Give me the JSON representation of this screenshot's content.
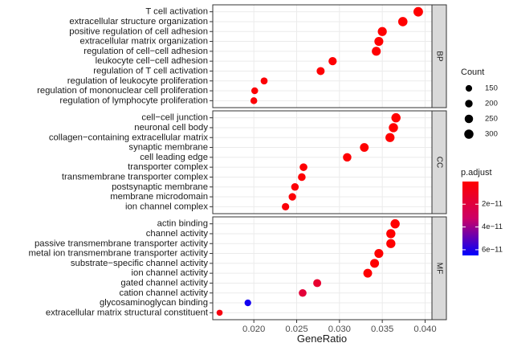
{
  "chart_data": {
    "type": "scatter",
    "xlabel": "GeneRatio",
    "ylabel": "",
    "xlim": [
      0.0152,
      0.0408
    ],
    "xticks": [
      0.02,
      0.025,
      0.03,
      0.035,
      0.04
    ],
    "xtick_labels": [
      "0.020",
      "0.025",
      "0.030",
      "0.035",
      "0.040"
    ],
    "grid": true,
    "legend_position": "right",
    "size_legend": {
      "title": "Count",
      "values": [
        150,
        200,
        250,
        300
      ],
      "labels": [
        "150",
        "200",
        "250",
        "300"
      ]
    },
    "color_legend": {
      "title": "p.adjust",
      "ticks": [
        2e-11,
        4e-11,
        6e-11
      ],
      "tick_labels": [
        "2e−11",
        "4e−11",
        "6e−11"
      ],
      "range": [
        1e-13,
        6.5e-11
      ],
      "low_color": "#ff0000",
      "high_color": "#0000ff"
    },
    "facets": [
      {
        "label": "BP",
        "terms": [
          {
            "term": "T cell activation",
            "x": 0.0392,
            "count": 320,
            "padj": 1e-13
          },
          {
            "term": "extracellular structure organization",
            "x": 0.0374,
            "count": 305,
            "padj": 1e-13
          },
          {
            "term": "positive regulation of cell adhesion",
            "x": 0.035,
            "count": 286,
            "padj": 5e-13
          },
          {
            "term": "extracellular matrix organization",
            "x": 0.0346,
            "count": 282,
            "padj": 1e-13
          },
          {
            "term": "regulation of cell−cell adhesion",
            "x": 0.0343,
            "count": 280,
            "padj": 1e-12
          },
          {
            "term": "leukocyte cell−cell adhesion",
            "x": 0.0292,
            "count": 238,
            "padj": 1e-12
          },
          {
            "term": "regulation of T cell activation",
            "x": 0.0278,
            "count": 227,
            "padj": 1e-12
          },
          {
            "term": "regulation of leukocyte proliferation",
            "x": 0.0212,
            "count": 172,
            "padj": 2e-12
          },
          {
            "term": "regulation of mononuclear cell proliferation",
            "x": 0.0201,
            "count": 164,
            "padj": 2e-12
          },
          {
            "term": "regulation of lymphocyte proliferation",
            "x": 0.02,
            "count": 163,
            "padj": 2e-12
          }
        ]
      },
      {
        "label": "CC",
        "terms": [
          {
            "term": "cell−cell junction",
            "x": 0.0366,
            "count": 298,
            "padj": 1e-13
          },
          {
            "term": "neuronal cell body",
            "x": 0.0363,
            "count": 296,
            "padj": 1e-13
          },
          {
            "term": "collagen−containing extracellular matrix",
            "x": 0.0359,
            "count": 292,
            "padj": 1e-13
          },
          {
            "term": "synaptic membrane",
            "x": 0.0329,
            "count": 268,
            "padj": 5e-13
          },
          {
            "term": "cell leading edge",
            "x": 0.0309,
            "count": 252,
            "padj": 1e-12
          },
          {
            "term": "transporter complex",
            "x": 0.0258,
            "count": 210,
            "padj": 1e-12
          },
          {
            "term": "transmembrane transporter complex",
            "x": 0.0256,
            "count": 208,
            "padj": 1e-12
          },
          {
            "term": "postsynaptic membrane",
            "x": 0.0248,
            "count": 202,
            "padj": 2e-12
          },
          {
            "term": "membrane microdomain",
            "x": 0.0245,
            "count": 199,
            "padj": 2e-12
          },
          {
            "term": "ion channel complex",
            "x": 0.0237,
            "count": 193,
            "padj": 3e-12
          }
        ]
      },
      {
        "label": "MF",
        "terms": [
          {
            "term": "actin binding",
            "x": 0.0365,
            "count": 297,
            "padj": 1e-13
          },
          {
            "term": "channel activity",
            "x": 0.036,
            "count": 293,
            "padj": 1e-13
          },
          {
            "term": "passive transmembrane transporter activity",
            "x": 0.036,
            "count": 293,
            "padj": 1e-13
          },
          {
            "term": "metal ion transmembrane transporter activity",
            "x": 0.0346,
            "count": 282,
            "padj": 5e-13
          },
          {
            "term": "substrate−specific channel activity",
            "x": 0.0341,
            "count": 278,
            "padj": 5e-13
          },
          {
            "term": "ion channel activity",
            "x": 0.0333,
            "count": 271,
            "padj": 8e-13
          },
          {
            "term": "gated channel activity",
            "x": 0.0274,
            "count": 224,
            "padj": 1.5e-11
          },
          {
            "term": "cation channel activity",
            "x": 0.0257,
            "count": 210,
            "padj": 1.8e-11
          },
          {
            "term": "glycosaminoglycan binding",
            "x": 0.0193,
            "count": 157,
            "padj": 6.2e-11
          },
          {
            "term": "extracellular matrix structural constituent",
            "x": 0.016,
            "count": 130,
            "padj": 5e-12
          }
        ]
      }
    ]
  }
}
